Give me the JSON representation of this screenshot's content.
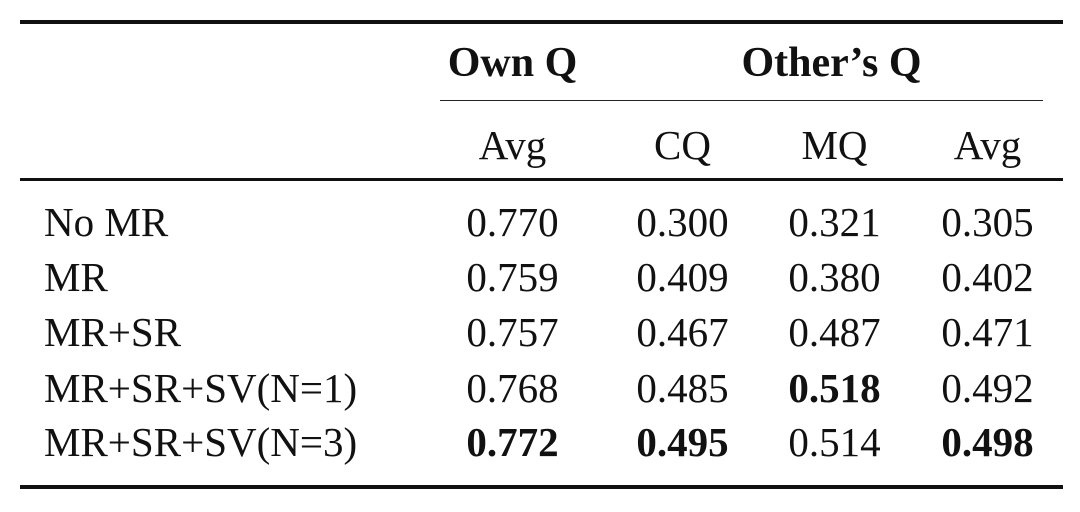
{
  "table": {
    "groups": [
      {
        "label": "Own Q"
      },
      {
        "label": "Other’s Q"
      }
    ],
    "subheaders": [
      "Avg",
      "CQ",
      "MQ",
      "Avg"
    ],
    "rows": [
      {
        "label": "No MR",
        "values": [
          "0.770",
          "0.300",
          "0.321",
          "0.305"
        ],
        "bold": [
          false,
          false,
          false,
          false
        ]
      },
      {
        "label": "MR",
        "values": [
          "0.759",
          "0.409",
          "0.380",
          "0.402"
        ],
        "bold": [
          false,
          false,
          false,
          false
        ]
      },
      {
        "label": "MR+SR",
        "values": [
          "0.757",
          "0.467",
          "0.487",
          "0.471"
        ],
        "bold": [
          false,
          false,
          false,
          false
        ]
      },
      {
        "label": "MR+SR+SV(N=1)",
        "values": [
          "0.768",
          "0.485",
          "0.518",
          "0.492"
        ],
        "bold": [
          false,
          false,
          true,
          false
        ]
      },
      {
        "label": "MR+SR+SV(N=3)",
        "values": [
          "0.772",
          "0.495",
          "0.514",
          "0.498"
        ],
        "bold": [
          true,
          true,
          false,
          true
        ]
      }
    ]
  }
}
